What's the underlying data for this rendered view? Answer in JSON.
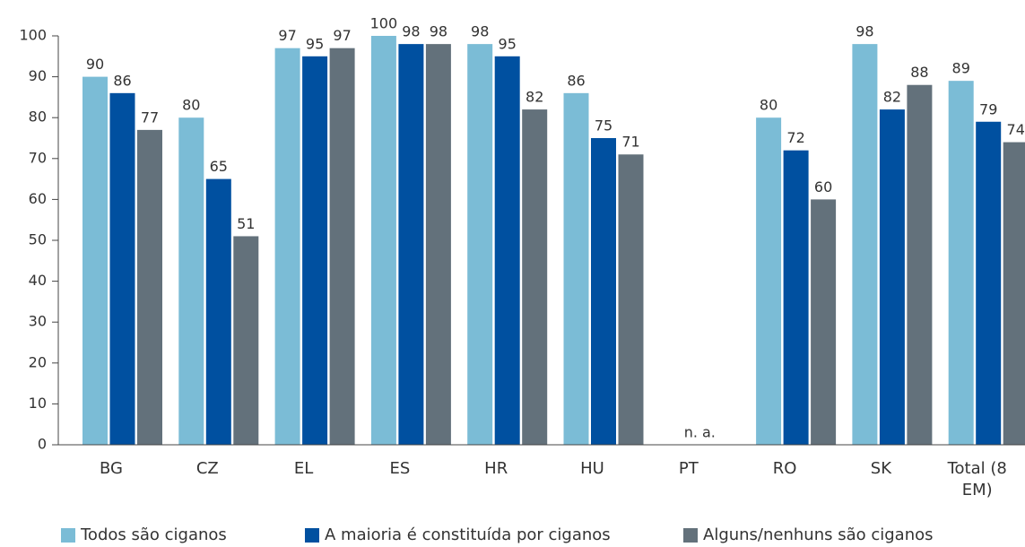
{
  "chart_data": {
    "type": "bar",
    "categories": [
      "BG",
      "CZ",
      "EL",
      "ES",
      "HR",
      "HU",
      "PT",
      "RO",
      "SK",
      "Total (8 EM)"
    ],
    "series": [
      {
        "name": "Todos são ciganos",
        "color": "#7bbcd6",
        "values": [
          90,
          80,
          97,
          100,
          98,
          86,
          null,
          80,
          98,
          89
        ]
      },
      {
        "name": "A maioria é constituída por ciganos",
        "color": "#0050a0",
        "values": [
          86,
          65,
          95,
          98,
          95,
          75,
          null,
          72,
          82,
          79
        ]
      },
      {
        "name": "Alguns/nenhuns são ciganos",
        "color": "#63717b",
        "values": [
          77,
          51,
          97,
          98,
          82,
          71,
          null,
          60,
          88,
          74
        ]
      }
    ],
    "annotation": {
      "text": "n. a.",
      "category": "PT"
    },
    "ylim": [
      0,
      100
    ],
    "yticks": [
      0,
      10,
      20,
      30,
      40,
      50,
      60,
      70,
      80,
      90,
      100
    ],
    "grid": false,
    "legend": "bottom"
  }
}
